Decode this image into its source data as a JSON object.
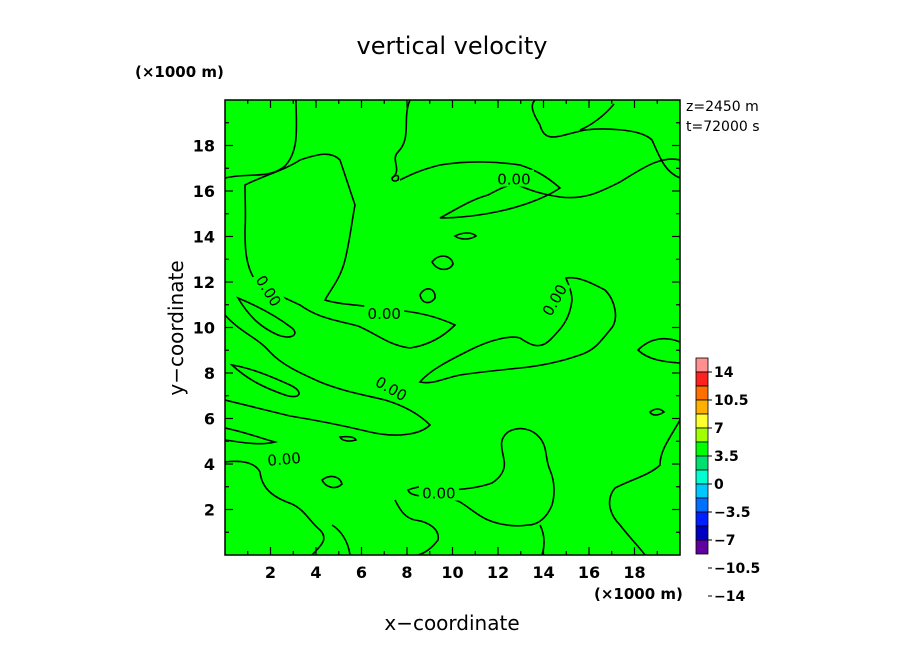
{
  "chart_data": {
    "type": "heatmap",
    "title": "vertical velocity",
    "xlabel": "x−coordinate",
    "ylabel": "y−coordinate",
    "x_unit": "(×1000 m)",
    "y_unit": "(×1000 m)",
    "xlim": [
      0,
      20
    ],
    "ylim": [
      0,
      20
    ],
    "x_ticks": [
      2,
      4,
      6,
      8,
      10,
      12,
      14,
      16,
      18
    ],
    "y_ticks": [
      2,
      4,
      6,
      8,
      10,
      12,
      14,
      16,
      18
    ],
    "x_tick_labels": [
      "2",
      "4",
      "6",
      "8",
      "10",
      "12",
      "14",
      "16",
      "18"
    ],
    "y_tick_labels": [
      "2",
      "4",
      "6",
      "8",
      "10",
      "12",
      "14",
      "16",
      "18"
    ],
    "annotation_z": "z=2450 m",
    "annotation_t": "t=72000 s",
    "fill_color": "#00ff00",
    "contour_level": 0,
    "contour_labels": [
      {
        "text": "0.00",
        "x": 12.7,
        "y": 16.5,
        "angle": 0
      },
      {
        "text": "0.00",
        "x": 1.9,
        "y": 11.6,
        "angle": 58
      },
      {
        "text": "0.00",
        "x": 7.0,
        "y": 10.6,
        "angle": 0
      },
      {
        "text": "0.00",
        "x": 14.5,
        "y": 11.2,
        "angle": -60
      },
      {
        "text": "0.00",
        "x": 7.3,
        "y": 7.3,
        "angle": 30
      },
      {
        "text": "0.00",
        "x": 2.6,
        "y": 4.2,
        "angle": -5
      },
      {
        "text": "0.00",
        "x": 9.4,
        "y": 2.7,
        "angle": 0
      }
    ],
    "colorbar": {
      "labels": [
        "14",
        "10.5",
        "7",
        "3.5",
        "0",
        "−3.5",
        "−7",
        "−10.5",
        "−14"
      ],
      "colors": [
        "#ff9090",
        "#ff2020",
        "#ff7000",
        "#ffb000",
        "#ffff30",
        "#a0ff00",
        "#00ff00",
        "#00e070",
        "#00ffd0",
        "#00c8ff",
        "#0070ff",
        "#0020ff",
        "#0000c0",
        "#6000a0"
      ]
    }
  }
}
